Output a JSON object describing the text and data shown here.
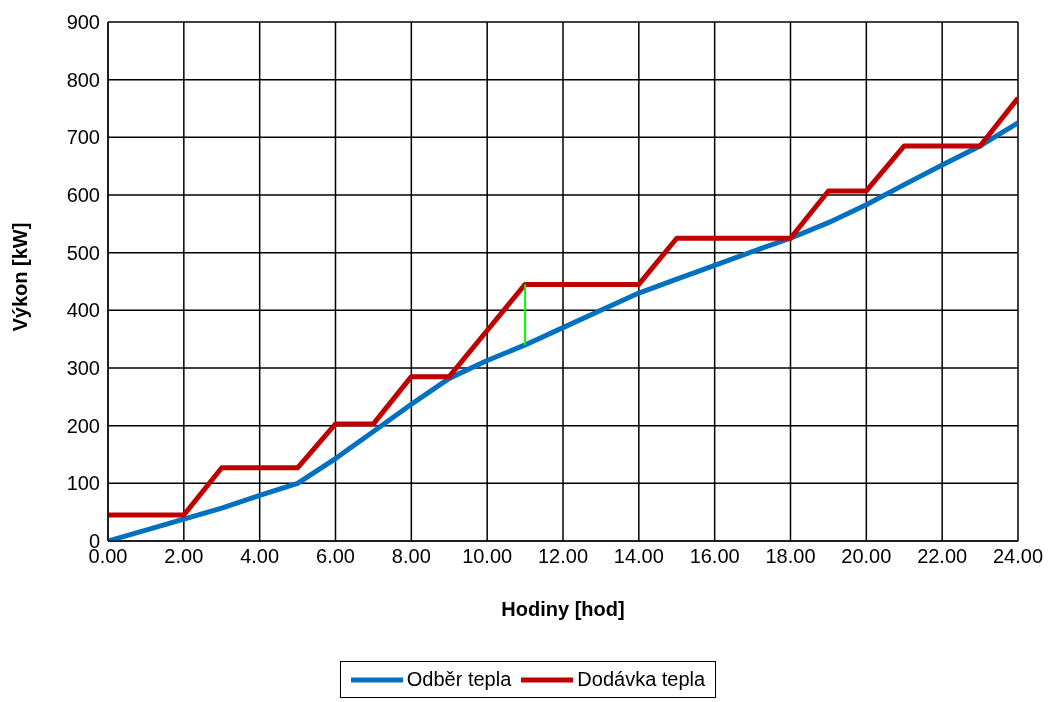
{
  "chart_data": {
    "type": "line",
    "xlabel": "Hodiny [hod]",
    "ylabel": "Výkon [kW]",
    "x": [
      0,
      1,
      2,
      3,
      4,
      5,
      6,
      7,
      8,
      9,
      10,
      11,
      12,
      13,
      14,
      15,
      16,
      17,
      18,
      19,
      20,
      21,
      22,
      23,
      24
    ],
    "series": [
      {
        "name": "Odběr tepla",
        "color": "#0070c0",
        "values": [
          0,
          19,
          38,
          57,
          79,
          100,
          143,
          190,
          237,
          282,
          313,
          340,
          370,
          400,
          430,
          454,
          478,
          502,
          525,
          552,
          583,
          618,
          652,
          685,
          725
        ]
      },
      {
        "name": "Dodávka tepla",
        "color": "#c00000",
        "values": [
          45,
          45,
          45,
          127,
          127,
          127,
          203,
          203,
          285,
          285,
          365,
          445,
          445,
          445,
          445,
          525,
          525,
          525,
          525,
          607,
          607,
          685,
          685,
          685,
          768
        ]
      },
      {
        "color": "#00ff00",
        "x": [
          11,
          11
        ],
        "values": [
          340,
          445
        ]
      }
    ],
    "xlim": [
      0,
      24
    ],
    "xticks": [
      {
        "value": 0,
        "label": "0.00"
      },
      {
        "value": 2,
        "label": "2.00"
      },
      {
        "value": 4,
        "label": "4.00"
      },
      {
        "value": 6,
        "label": "6.00"
      },
      {
        "value": 8,
        "label": "8.00"
      },
      {
        "value": 10,
        "label": "10.00"
      },
      {
        "value": 12,
        "label": "12.00"
      },
      {
        "value": 14,
        "label": "14.00"
      },
      {
        "value": 16,
        "label": "16.00"
      },
      {
        "value": 18,
        "label": "18.00"
      },
      {
        "value": 20,
        "label": "20.00"
      },
      {
        "value": 22,
        "label": "22.00"
      },
      {
        "value": 24,
        "label": "24.00"
      }
    ],
    "ylim": [
      0,
      900
    ],
    "yticks": [
      0,
      100,
      200,
      300,
      400,
      500,
      600,
      700,
      800,
      900
    ],
    "grid": true,
    "legend": "bottom",
    "marker": "none",
    "line_style": "solid"
  }
}
